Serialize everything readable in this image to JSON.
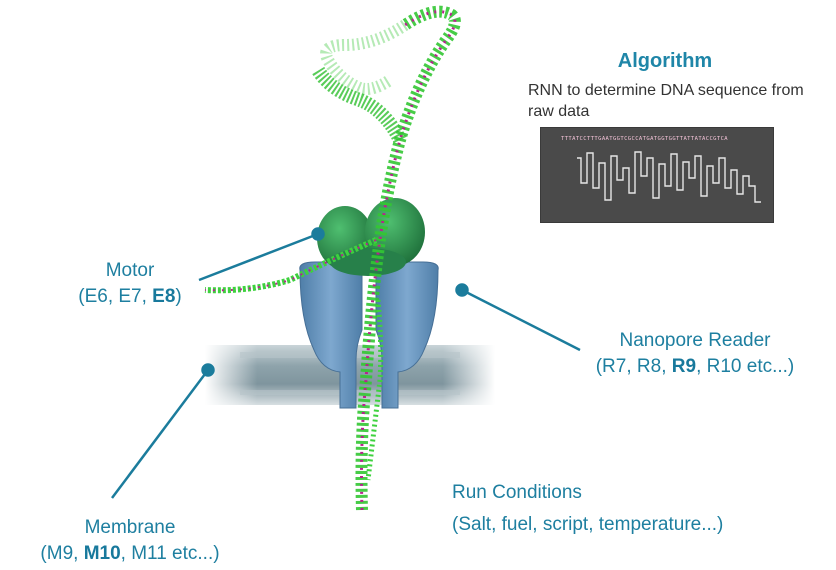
{
  "algorithm": {
    "title": "Algorithm",
    "description": "RNN to determine DNA sequence from raw data",
    "sequence": "TTTATCCTTTGAATGGTCGCCATGATGGTGGTTATTATACCGTCA"
  },
  "labels": {
    "motor": {
      "title": "Motor",
      "prefix": "(E6, E7, ",
      "bold": "E8",
      "suffix": ")"
    },
    "nanopore": {
      "title": "Nanopore Reader",
      "prefix": "(R7, R8, ",
      "bold": "R9",
      "suffix": ", R10 etc...)"
    },
    "membrane": {
      "title": "Membrane",
      "prefix": "(M9, ",
      "bold": "M10",
      "suffix": ", M11 etc...)"
    },
    "run_conditions": {
      "title": "Run Conditions",
      "detail": "(Salt, fuel, script, temperature...)"
    }
  },
  "colors": {
    "label": "#1e7fa0",
    "callout_line": "#1b7c9c",
    "dna_green": "#3ed13e",
    "motor_green": "#2e9a52",
    "pore_blue": "#6f9cc4",
    "membrane_gray": "#9fb0b7"
  }
}
